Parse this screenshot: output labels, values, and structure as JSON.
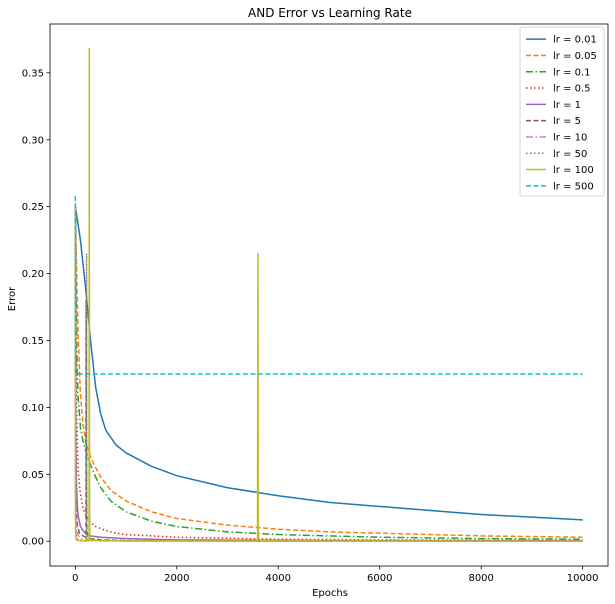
{
  "chart_data": {
    "type": "line",
    "title": "AND Error vs Learning Rate",
    "xlabel": "Epochs",
    "ylabel": "Error",
    "xlim": [
      -500,
      10500
    ],
    "ylim": [
      -0.0185,
      0.3865
    ],
    "xticks": [
      0,
      2000,
      4000,
      6000,
      8000,
      10000
    ],
    "yticks": [
      0.0,
      0.05,
      0.1,
      0.15,
      0.2,
      0.25,
      0.3,
      0.35
    ],
    "ytick_labels": [
      "0.00",
      "0.05",
      "0.10",
      "0.15",
      "0.20",
      "0.25",
      "0.30",
      "0.35"
    ],
    "grid": false,
    "legend": "top-right",
    "series": [
      {
        "name": "lr = 0.01",
        "color": "#1f77b4",
        "dash": "solid",
        "x": [
          0,
          100,
          200,
          300,
          400,
          500,
          600,
          800,
          1000,
          1500,
          2000,
          3000,
          4000,
          5000,
          6000,
          7000,
          8000,
          9000,
          10000
        ],
        "y": [
          0.25,
          0.225,
          0.19,
          0.15,
          0.115,
          0.095,
          0.083,
          0.072,
          0.066,
          0.056,
          0.049,
          0.04,
          0.034,
          0.029,
          0.026,
          0.023,
          0.02,
          0.018,
          0.016
        ]
      },
      {
        "name": "lr = 0.05",
        "color": "#ff7f0e",
        "dash": "dashed",
        "x": [
          0,
          25,
          50,
          100,
          150,
          200,
          300,
          400,
          500,
          700,
          1000,
          1500,
          2000,
          3000,
          4000,
          5000,
          6000,
          7000,
          8000,
          9000,
          10000
        ],
        "y": [
          0.25,
          0.2,
          0.16,
          0.11,
          0.088,
          0.075,
          0.063,
          0.055,
          0.048,
          0.038,
          0.03,
          0.022,
          0.017,
          0.012,
          0.009,
          0.007,
          0.006,
          0.005,
          0.004,
          0.0035,
          0.003
        ]
      },
      {
        "name": "lr = 0.1",
        "color": "#2ca02c",
        "dash": "dashdot",
        "x": [
          0,
          15,
          30,
          50,
          100,
          150,
          200,
          300,
          400,
          500,
          700,
          1000,
          1500,
          2000,
          3000,
          4000,
          5000,
          6000,
          8000,
          10000
        ],
        "y": [
          0.25,
          0.18,
          0.14,
          0.11,
          0.085,
          0.075,
          0.068,
          0.057,
          0.048,
          0.04,
          0.03,
          0.022,
          0.015,
          0.011,
          0.007,
          0.005,
          0.004,
          0.003,
          0.002,
          0.0015
        ]
      },
      {
        "name": "lr = 0.5",
        "color": "#d62728",
        "dash": "dotted",
        "x": [
          0,
          10,
          20,
          40,
          60,
          100,
          150,
          200,
          300,
          400,
          600,
          800,
          1000,
          2000,
          4000,
          6000,
          8000,
          10000
        ],
        "y": [
          0.25,
          0.16,
          0.11,
          0.07,
          0.05,
          0.035,
          0.025,
          0.02,
          0.014,
          0.011,
          0.008,
          0.006,
          0.005,
          0.003,
          0.0015,
          0.001,
          0.0008,
          0.0006
        ]
      },
      {
        "name": "lr = 1",
        "color": "#9467bd",
        "dash": "solid",
        "x": [
          0,
          5,
          10,
          20,
          40,
          60,
          100,
          150,
          200,
          300,
          500,
          1000,
          2000,
          5000,
          10000
        ],
        "y": [
          0.25,
          0.13,
          0.08,
          0.045,
          0.025,
          0.018,
          0.011,
          0.008,
          0.006,
          0.004,
          0.003,
          0.002,
          0.001,
          0.0005,
          0.0003
        ]
      },
      {
        "name": "lr = 5",
        "color": "#8c564b",
        "dash": "dashed",
        "x": [
          0,
          3,
          6,
          10,
          20,
          40,
          80,
          150,
          210,
          211,
          212,
          214,
          216,
          220,
          230,
          300,
          500,
          1000,
          3000,
          10000
        ],
        "y": [
          0.25,
          0.12,
          0.07,
          0.04,
          0.02,
          0.012,
          0.006,
          0.004,
          0.003,
          0.125,
          0.18,
          0.12,
          0.06,
          0.02,
          0.005,
          0.002,
          0.001,
          0.0005,
          0.0002,
          0.0001
        ]
      },
      {
        "name": "lr = 10",
        "color": "#e377c2",
        "dash": "dashdot",
        "x": [
          0,
          2,
          4,
          8,
          15,
          30,
          60,
          100,
          200,
          500,
          1000,
          10000
        ],
        "y": [
          0.25,
          0.11,
          0.06,
          0.03,
          0.015,
          0.007,
          0.004,
          0.002,
          0.001,
          0.0005,
          0.0003,
          0.0001
        ]
      },
      {
        "name": "lr = 50",
        "color": "#7f7f7f",
        "dash": "dotted",
        "x": [
          0,
          1,
          2,
          4,
          8,
          20,
          50,
          100,
          200,
          220,
          221,
          222,
          224,
          228,
          240,
          300,
          1000,
          10000
        ],
        "y": [
          0.25,
          0.1,
          0.05,
          0.02,
          0.008,
          0.003,
          0.001,
          0.0005,
          0.0003,
          0.0003,
          0.215,
          0.16,
          0.07,
          0.01,
          0.001,
          0.0003,
          0.0001,
          0.0001
        ]
      },
      {
        "name": "lr = 100",
        "color": "#bcbd22",
        "dash": "solid",
        "x": [
          0,
          1,
          3,
          10,
          30,
          100,
          200,
          270,
          275,
          278,
          282,
          290,
          310,
          400,
          1000,
          3000,
          3590,
          3600,
          3605,
          3615,
          3640,
          4000,
          10000
        ],
        "y": [
          0.25,
          0.06,
          0.01,
          0.002,
          0.0008,
          0.0004,
          0.0003,
          0.0003,
          0.368,
          0.075,
          0.01,
          0.003,
          0.001,
          0.0005,
          0.0003,
          0.0002,
          0.0002,
          0.215,
          0.01,
          0.002,
          0.0005,
          0.0002,
          0.0001
        ]
      },
      {
        "name": "lr = 500",
        "color": "#17becf",
        "dash": "dashed",
        "x": [
          0,
          2,
          5,
          10,
          10000
        ],
        "y": [
          0.258,
          0.16,
          0.13,
          0.125,
          0.125
        ]
      }
    ]
  }
}
